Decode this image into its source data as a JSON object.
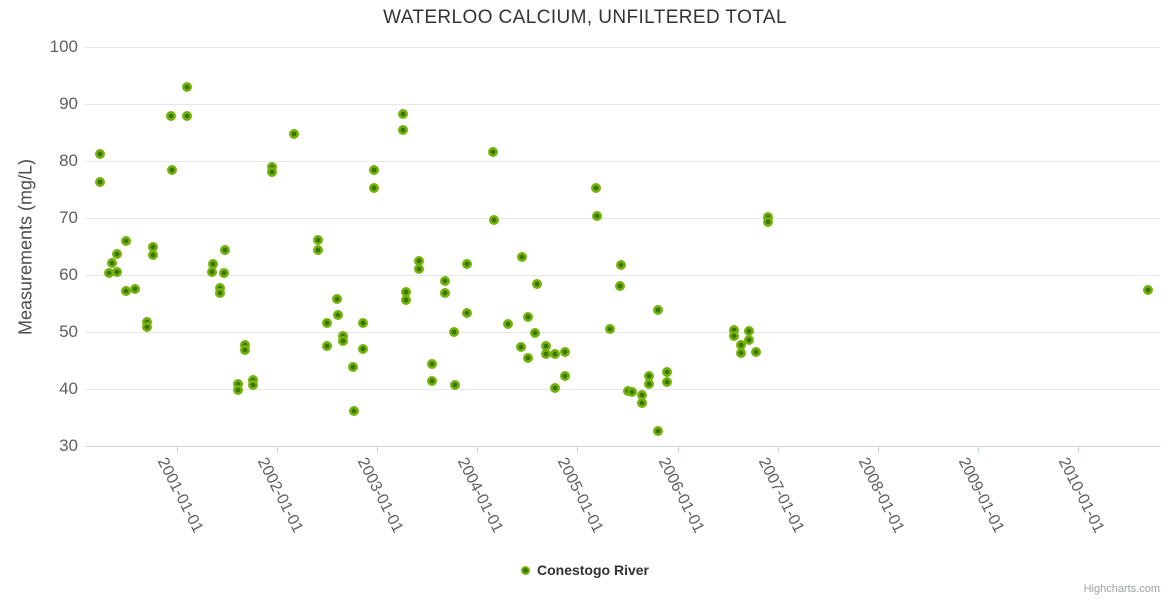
{
  "credit": "Highcharts.com",
  "legend": {
    "items": [
      {
        "label": "Conestogo River"
      }
    ]
  },
  "colors": {
    "marker_outer": "#74B30C",
    "marker_inner": "#3D7405",
    "gridline": "#E6E6E6",
    "axis_line": "#CCD6EB",
    "title_text": "#333333",
    "axis_label_text": "#606060"
  },
  "chart_data": {
    "type": "scatter",
    "title": "WATERLOO CALCIUM, UNFILTERED TOTAL",
    "xlabel": "",
    "ylabel": "Measurements (mg/L)",
    "ylim": [
      30,
      100
    ],
    "xlim_decimal_years": [
      2000.08,
      2010.82
    ],
    "grid": true,
    "legend_position": "bottom-center",
    "y_ticks": [
      30,
      40,
      50,
      60,
      70,
      80,
      90,
      100
    ],
    "x_ticks": [
      "2001-01-01",
      "2002-01-01",
      "2003-01-01",
      "2004-01-01",
      "2005-01-01",
      "2006-01-01",
      "2007-01-01",
      "2008-01-01",
      "2009-01-01",
      "2010-01-01"
    ],
    "x_unit": "decimal_year",
    "series": [
      {
        "name": "Conestogo River",
        "points": [
          [
            2000.23,
            81.2
          ],
          [
            2000.23,
            76.3
          ],
          [
            2000.32,
            60.3
          ],
          [
            2000.35,
            62.1
          ],
          [
            2000.4,
            63.6
          ],
          [
            2000.4,
            60.5
          ],
          [
            2000.49,
            66.0
          ],
          [
            2000.49,
            57.2
          ],
          [
            2000.58,
            57.5
          ],
          [
            2000.7,
            51.7
          ],
          [
            2000.7,
            50.8
          ],
          [
            2000.76,
            64.9
          ],
          [
            2000.76,
            63.5
          ],
          [
            2000.94,
            87.9
          ],
          [
            2000.95,
            78.4
          ],
          [
            2001.1,
            92.9
          ],
          [
            2001.1,
            87.9
          ],
          [
            2001.35,
            60.6
          ],
          [
            2001.36,
            61.9
          ],
          [
            2001.43,
            57.7
          ],
          [
            2001.43,
            56.8
          ],
          [
            2001.47,
            60.3
          ],
          [
            2001.48,
            64.4
          ],
          [
            2001.61,
            40.9
          ],
          [
            2001.61,
            39.9
          ],
          [
            2001.68,
            47.8
          ],
          [
            2001.68,
            46.9
          ],
          [
            2001.76,
            41.6
          ],
          [
            2001.76,
            40.7
          ],
          [
            2001.95,
            79.0
          ],
          [
            2001.95,
            78.0
          ],
          [
            2002.17,
            84.8
          ],
          [
            2002.41,
            66.1
          ],
          [
            2002.41,
            64.4
          ],
          [
            2002.5,
            51.6
          ],
          [
            2002.5,
            47.6
          ],
          [
            2002.6,
            55.8
          ],
          [
            2002.61,
            53.0
          ],
          [
            2002.66,
            49.3
          ],
          [
            2002.66,
            48.4
          ],
          [
            2002.76,
            43.8
          ],
          [
            2002.77,
            36.1
          ],
          [
            2002.86,
            51.6
          ],
          [
            2002.86,
            47.0
          ],
          [
            2002.97,
            78.5
          ],
          [
            2002.97,
            75.3
          ],
          [
            2003.26,
            88.3
          ],
          [
            2003.26,
            85.4
          ],
          [
            2003.29,
            57.1
          ],
          [
            2003.29,
            55.6
          ],
          [
            2003.42,
            62.5
          ],
          [
            2003.42,
            61.1
          ],
          [
            2003.55,
            44.3
          ],
          [
            2003.55,
            41.4
          ],
          [
            2003.68,
            58.9
          ],
          [
            2003.68,
            56.8
          ],
          [
            2003.77,
            50.0
          ],
          [
            2003.78,
            40.7
          ],
          [
            2003.9,
            61.9
          ],
          [
            2003.9,
            53.3
          ],
          [
            2004.16,
            81.6
          ],
          [
            2004.17,
            69.7
          ],
          [
            2004.31,
            51.4
          ],
          [
            2004.44,
            47.4
          ],
          [
            2004.45,
            63.2
          ],
          [
            2004.51,
            52.6
          ],
          [
            2004.51,
            45.4
          ],
          [
            2004.58,
            49.9
          ],
          [
            2004.6,
            58.4
          ],
          [
            2004.69,
            47.6
          ],
          [
            2004.69,
            46.2
          ],
          [
            2004.78,
            46.1
          ],
          [
            2004.78,
            40.1
          ],
          [
            2004.88,
            46.5
          ],
          [
            2004.88,
            42.3
          ],
          [
            2005.19,
            75.2
          ],
          [
            2005.2,
            70.4
          ],
          [
            2005.33,
            50.6
          ],
          [
            2005.43,
            58.0
          ],
          [
            2005.44,
            61.8
          ],
          [
            2005.51,
            39.7
          ],
          [
            2005.55,
            39.4
          ],
          [
            2005.65,
            39.0
          ],
          [
            2005.65,
            37.6
          ],
          [
            2005.72,
            42.3
          ],
          [
            2005.72,
            40.8
          ],
          [
            2005.81,
            53.9
          ],
          [
            2005.81,
            32.6
          ],
          [
            2005.9,
            42.9
          ],
          [
            2005.9,
            41.3
          ],
          [
            2006.56,
            50.3
          ],
          [
            2006.56,
            49.3
          ],
          [
            2006.63,
            47.7
          ],
          [
            2006.63,
            46.4
          ],
          [
            2006.71,
            50.1
          ],
          [
            2006.71,
            48.6
          ],
          [
            2006.78,
            46.5
          ],
          [
            2006.9,
            70.2
          ],
          [
            2006.9,
            69.3
          ],
          [
            2010.7,
            57.3
          ]
        ]
      }
    ]
  }
}
